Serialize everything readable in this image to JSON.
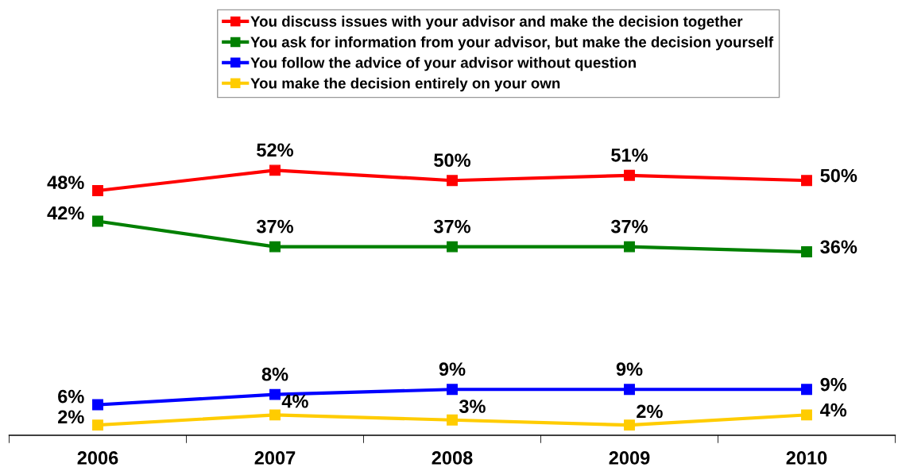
{
  "chart_data": {
    "type": "line",
    "categories": [
      "2006",
      "2007",
      "2008",
      "2009",
      "2010"
    ],
    "series": [
      {
        "name": "You discuss issues with your advisor and make the decision together",
        "color": "#ff0000",
        "values": [
          48,
          52,
          50,
          51,
          50
        ],
        "value_labels": [
          "48%",
          "52%",
          "50%",
          "51%",
          "50%"
        ]
      },
      {
        "name": "You ask for information from your advisor, but make the decision yourself",
        "color": "#008000",
        "values": [
          42,
          37,
          37,
          37,
          36
        ],
        "value_labels": [
          "42%",
          "37%",
          "37%",
          "37%",
          "36%"
        ]
      },
      {
        "name": "You follow the advice of your advisor without question",
        "color": "#0000ff",
        "values": [
          6,
          8,
          9,
          9,
          9
        ],
        "value_labels": [
          "6%",
          "8%",
          "9%",
          "9%",
          "9%"
        ]
      },
      {
        "name": "You make the decision entirely on your own",
        "color": "#ffcc00",
        "values": [
          2,
          4,
          3,
          2,
          4
        ],
        "value_labels": [
          "2%",
          "4%",
          "3%",
          "2%",
          "4%"
        ]
      }
    ],
    "legend": "top",
    "marker": "square",
    "line_style": "solid",
    "grid": false
  }
}
